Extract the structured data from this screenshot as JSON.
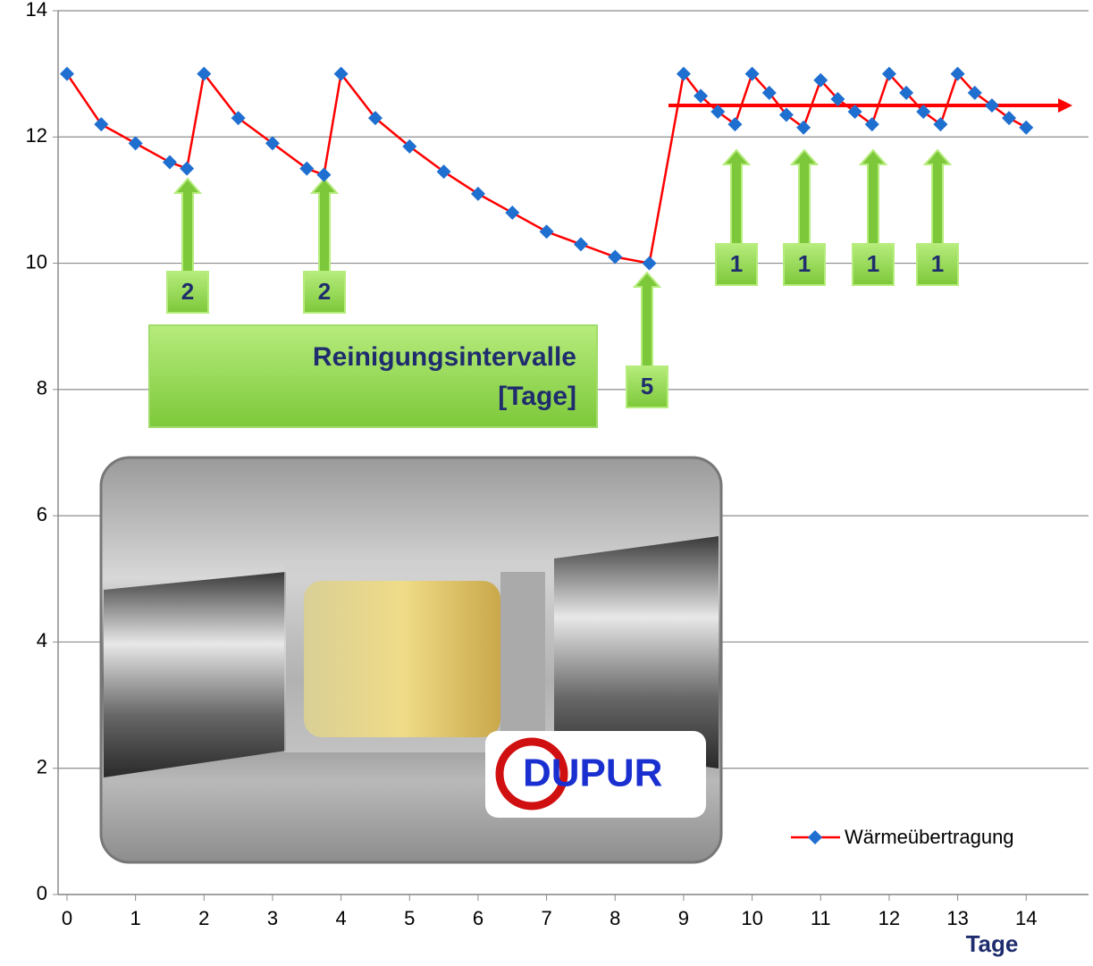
{
  "chart_data": {
    "type": "line",
    "x": [
      0,
      0.5,
      1,
      1.5,
      1.75,
      2,
      2.5,
      3,
      3.5,
      3.75,
      4,
      4.5,
      5,
      5.5,
      6,
      6.5,
      7,
      7.5,
      8,
      8.5,
      9,
      9.25,
      9.5,
      9.75,
      10,
      10.25,
      10.5,
      10.75,
      11,
      11.25,
      11.5,
      11.75,
      12,
      12.25,
      12.5,
      12.75,
      13,
      13.25,
      13.5,
      13.75,
      14
    ],
    "series": [
      {
        "name": "Wärmeübertragung",
        "color": "#ff0000",
        "marker_color": "#1f6fd0",
        "values": [
          13,
          12.2,
          11.9,
          11.6,
          11.5,
          13,
          12.3,
          11.9,
          11.5,
          11.4,
          13,
          12.3,
          11.85,
          11.45,
          11.1,
          10.8,
          10.5,
          10.3,
          10.1,
          10,
          13,
          12.65,
          12.4,
          12.2,
          13,
          12.7,
          12.35,
          12.15,
          12.9,
          12.6,
          12.4,
          12.2,
          13,
          12.7,
          12.4,
          12.2,
          13,
          12.7,
          12.5,
          12.3,
          12.15
        ]
      }
    ],
    "x_label": "Tage",
    "xlim": [
      -0.13,
      14.91
    ],
    "xticks": [
      0,
      1,
      2,
      3,
      4,
      5,
      6,
      7,
      8,
      9,
      10,
      11,
      12,
      13,
      14
    ],
    "ylim": [
      0,
      14
    ],
    "yticks": [
      0,
      2,
      4,
      6,
      8,
      10,
      12,
      14
    ],
    "grid": true,
    "legend": "lower right",
    "annotations": [
      "2",
      "2",
      "5",
      "1",
      "1",
      "1",
      "1"
    ],
    "box_title": [
      "Reinigungsintervalle",
      "[Tage]"
    ],
    "logo_text": "DUPUR"
  }
}
